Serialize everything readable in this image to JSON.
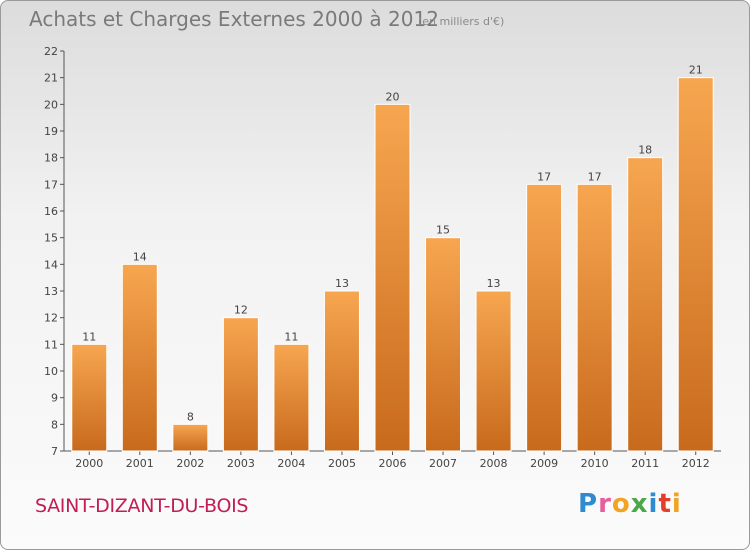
{
  "header": {
    "title": "Achats et Charges Externes 2000 à 2012",
    "unit": "(en milliers d'€)"
  },
  "footer": {
    "commune": "SAINT-DIZANT-DU-BOIS",
    "logo_text": "Proxiti",
    "logo_colors": [
      "#2f8bd1",
      "#e85d9c",
      "#f2a324",
      "#4aa84a",
      "#2f8bd1",
      "#e0402c",
      "#f2a324"
    ]
  },
  "colors": {
    "bar_top": "#f7a650",
    "bar_bottom": "#c86a1c",
    "title": "#7a7a7a",
    "commune": "#c21d54"
  },
  "chart_data": {
    "type": "bar",
    "title": "Achats et Charges Externes 2000 à 2012",
    "subtitle": "(en milliers d'€)",
    "categories": [
      "2000",
      "2001",
      "2002",
      "2003",
      "2004",
      "2005",
      "2006",
      "2007",
      "2008",
      "2009",
      "2010",
      "2011",
      "2012"
    ],
    "values": [
      11,
      14,
      8,
      12,
      11,
      13,
      20,
      15,
      13,
      17,
      17,
      18,
      21
    ],
    "ylim": [
      7,
      22
    ],
    "yticks": [
      7,
      8,
      9,
      10,
      11,
      12,
      13,
      14,
      15,
      16,
      17,
      18,
      19,
      20,
      21,
      22
    ],
    "grid": false
  }
}
